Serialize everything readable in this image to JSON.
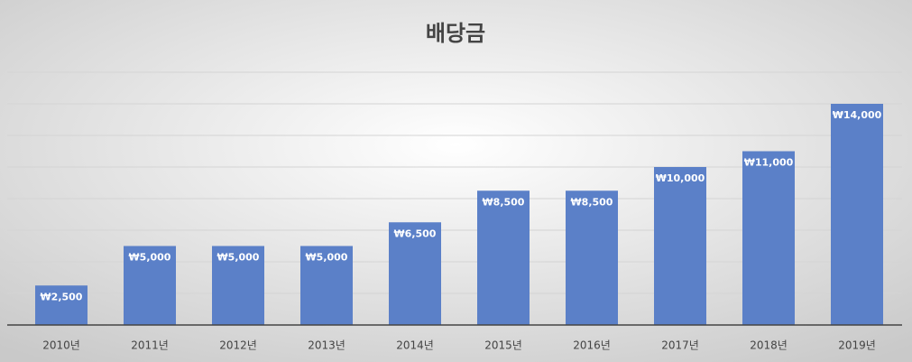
{
  "chart_data": {
    "type": "bar",
    "title": "배당금",
    "categories": [
      "2010년",
      "2011년",
      "2012년",
      "2013년",
      "2014년",
      "2015년",
      "2016년",
      "2017년",
      "2018년",
      "2019년"
    ],
    "values": [
      2500,
      5000,
      5000,
      5000,
      6500,
      8500,
      8500,
      10000,
      11000,
      14000
    ],
    "value_labels": [
      "₩2,500",
      "₩5,000",
      "₩5,000",
      "₩5,000",
      "₩6,500",
      "₩8,500",
      "₩8,500",
      "₩10,000",
      "₩11,000",
      "₩14,000"
    ],
    "color": "#5b80c8",
    "ylim": [
      0,
      16000
    ],
    "yticks": [
      2000,
      4000,
      6000,
      8000,
      10000,
      12000,
      14000,
      16000
    ],
    "grid": true
  }
}
